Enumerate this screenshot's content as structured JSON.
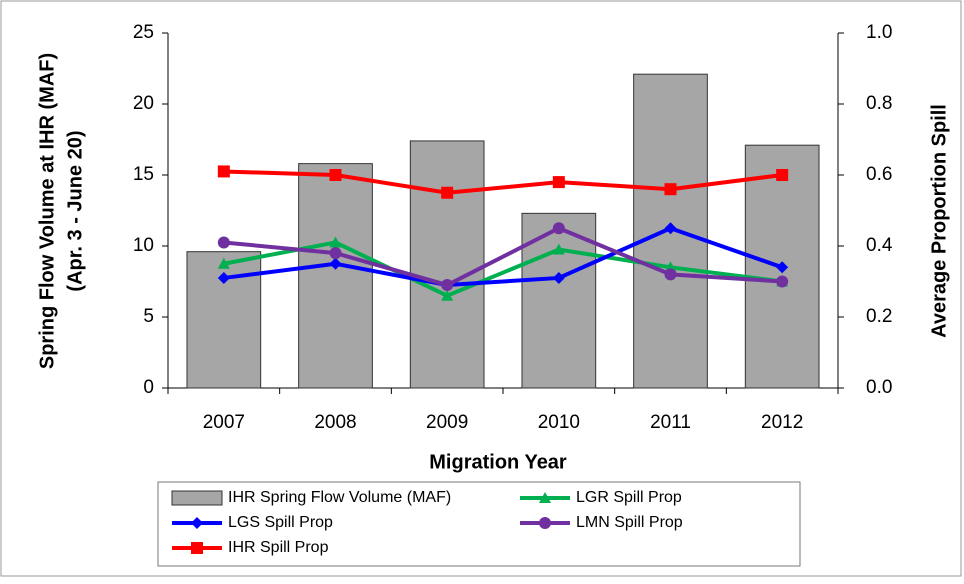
{
  "chart_data": {
    "type": "combo",
    "xlabel": "Migration Year",
    "ylabel": [
      "Spring Flow Volume at IHR (MAF)",
      "(Apr. 3 - June 20)"
    ],
    "y2label": "Average Proportion Spill",
    "categories": [
      "2007",
      "2008",
      "2009",
      "2010",
      "2011",
      "2012"
    ],
    "ylim": [
      0,
      25
    ],
    "yticks": [
      0,
      5,
      10,
      15,
      20,
      25
    ],
    "y2lim": [
      0,
      1
    ],
    "y2ticks": [
      {
        "value": 0,
        "label": "0.0"
      },
      0.2,
      0.4,
      0.6,
      0.8,
      {
        "value": 1,
        "label": "1.0"
      }
    ],
    "series": [
      {
        "name": "IHR Spring Flow Volume (MAF)",
        "type": "bar",
        "color": "#a6a6a6",
        "values": [
          9.6,
          15.8,
          17.4,
          12.3,
          22.1,
          17.1
        ]
      },
      {
        "name": "LGR Spill Prop",
        "type": "line",
        "marker": "triangle",
        "axis": "y2",
        "color": "#00b050",
        "values": [
          0.35,
          0.41,
          0.26,
          0.39,
          0.34,
          0.3
        ]
      },
      {
        "name": "LGS Spill Prop",
        "type": "line",
        "marker": "diamond",
        "axis": "y2",
        "color": "#0000ff",
        "values": [
          0.31,
          0.35,
          0.29,
          0.31,
          0.45,
          0.34
        ]
      },
      {
        "name": "LMN Spill Prop",
        "type": "line",
        "marker": "circle",
        "axis": "y2",
        "color": "#7030a0",
        "values": [
          0.41,
          0.38,
          0.29,
          0.45,
          0.32,
          0.3
        ]
      },
      {
        "name": "IHR Spill Prop",
        "type": "line",
        "marker": "square",
        "axis": "y2",
        "color": "#ff0000",
        "values": [
          0.61,
          0.6,
          0.55,
          0.58,
          0.56,
          0.6
        ]
      }
    ]
  }
}
